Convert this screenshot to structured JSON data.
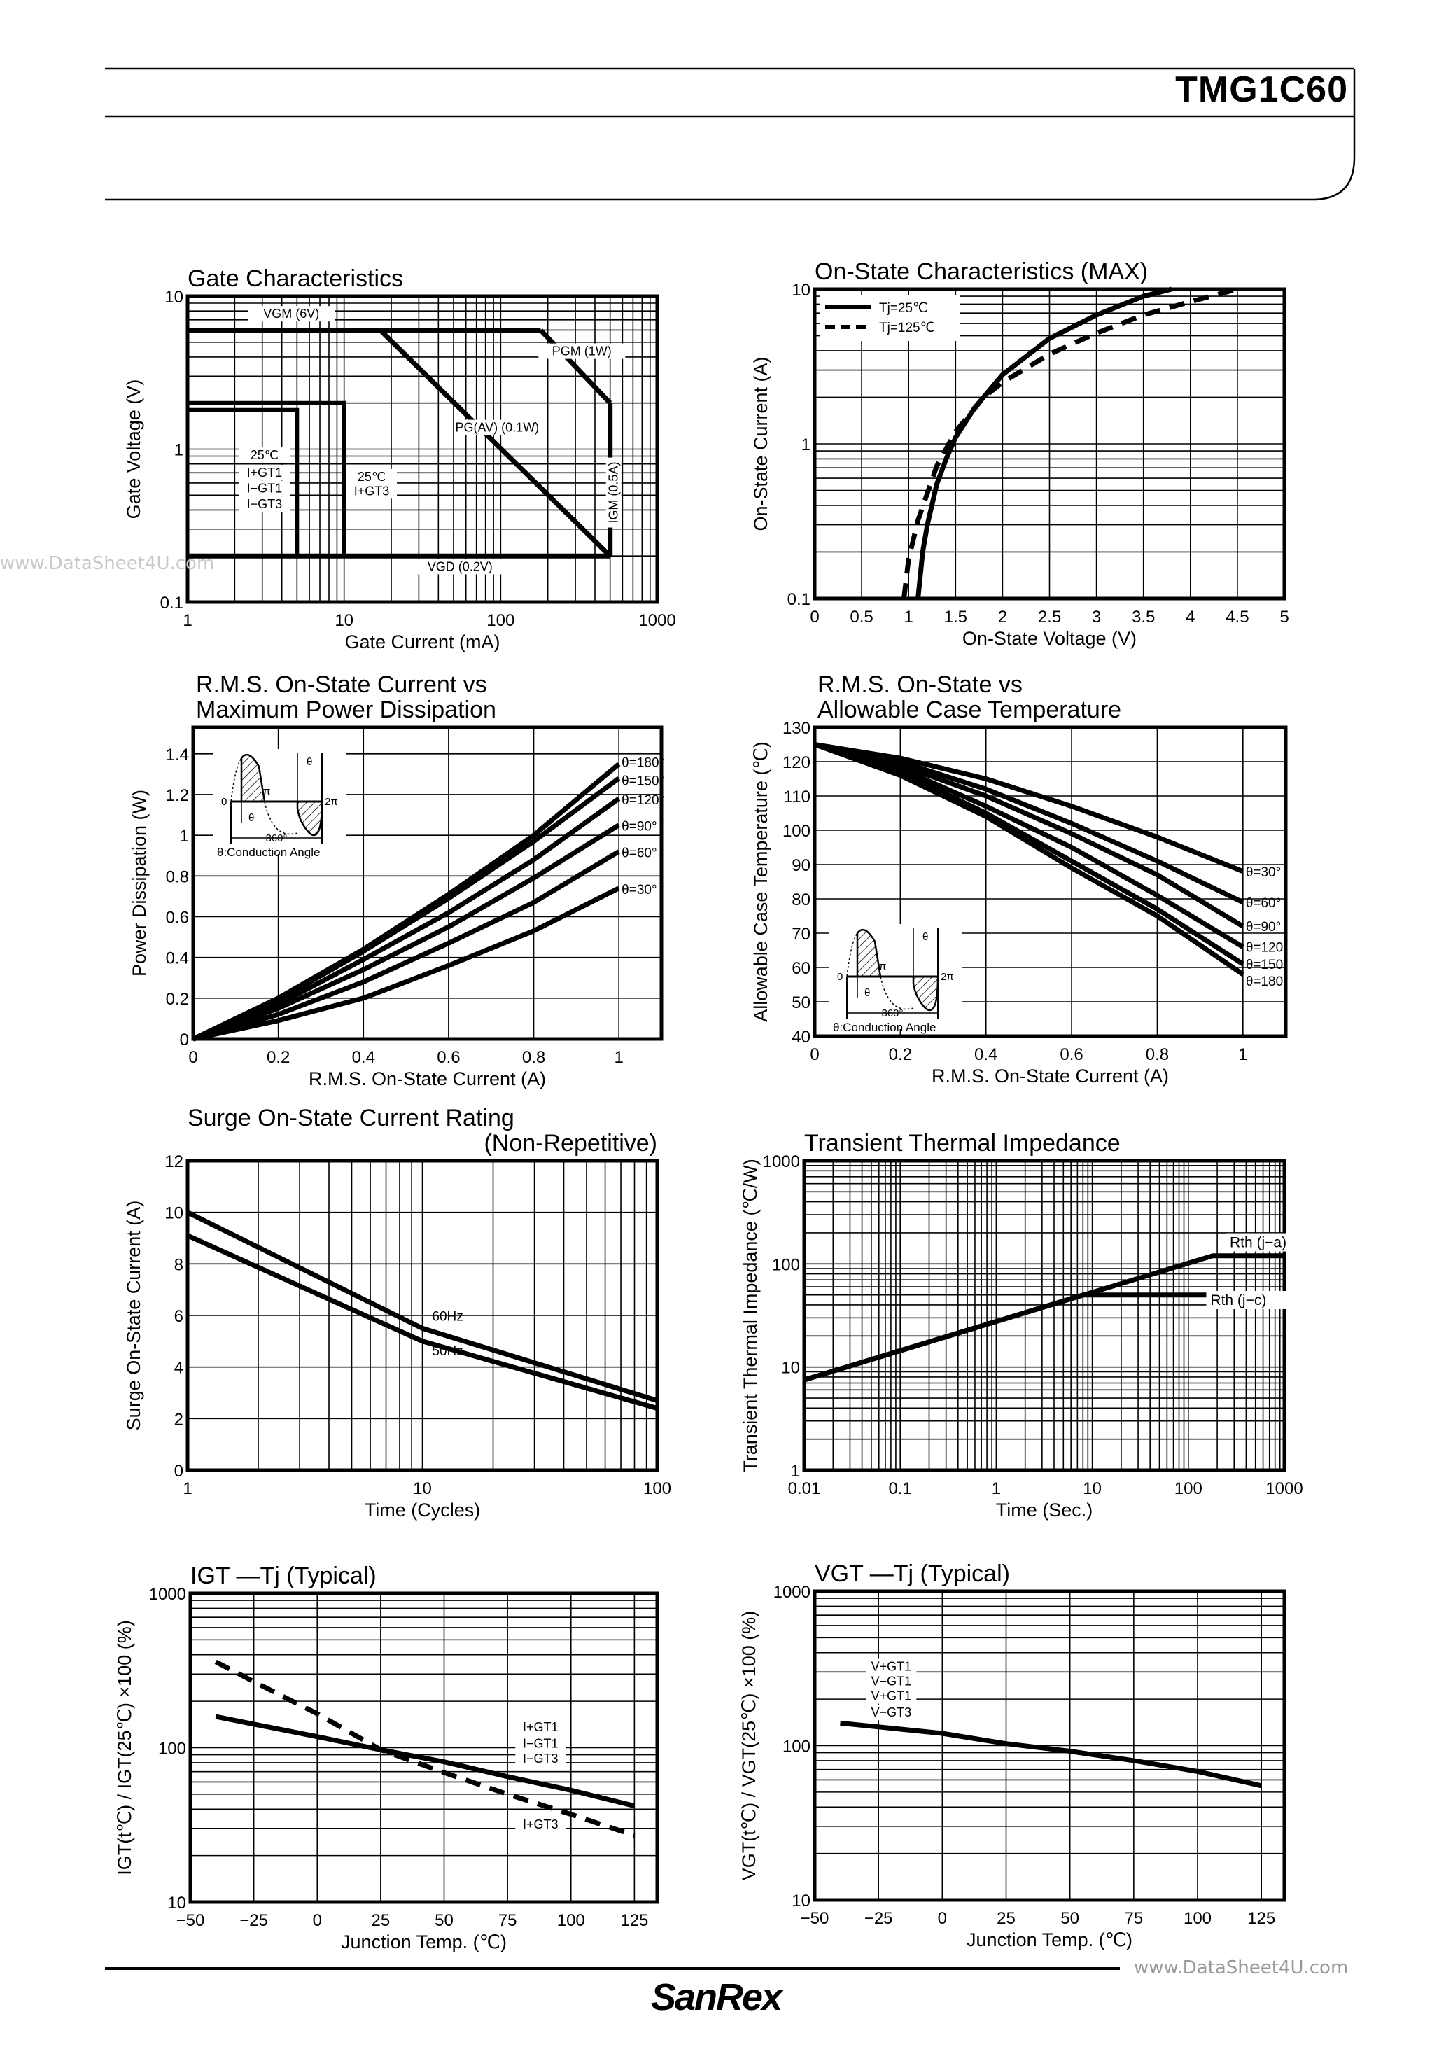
{
  "header": {
    "part_number": "TMG1C60"
  },
  "footer": {
    "brand_logo": "SanRex",
    "watermark": "www.DataSheet4U.com"
  },
  "watermark_left": "www.DataSheet4U.com",
  "inset": {
    "zero": "0",
    "pi": "π",
    "two_pi": "2π",
    "theta": "θ",
    "period": "360°",
    "caption": "θ:Conduction Angle"
  },
  "chart_data": [
    {
      "type": "line",
      "title": [
        "Gate Characteristics"
      ],
      "xlabel": "Gate Current (mA)",
      "ylabel": "Gate Voltage (V)",
      "xscale": "log",
      "yscale": "log",
      "xlim": [
        1,
        1000
      ],
      "ylim": [
        0.1,
        10
      ],
      "xticks": [
        1,
        10,
        100,
        1000
      ],
      "xtick_labels": [
        "1",
        "10",
        "100",
        "1000"
      ],
      "yticks": [
        0.1,
        1,
        10
      ],
      "ytick_labels": [
        "0.1",
        "1",
        "10"
      ],
      "grid": true,
      "series": [
        {
          "name": "VGM (6V)",
          "points": [
            [
              1,
              6
            ],
            [
              180,
              6
            ]
          ]
        },
        {
          "name": "PGM (1W)",
          "points": [
            [
              180,
              6
            ],
            [
              500,
              2
            ]
          ]
        },
        {
          "name": "IGM (0.5A)",
          "points": [
            [
              500,
              2
            ],
            [
              500,
              0.2
            ]
          ]
        },
        {
          "name": "PG(AV) (0.1W)",
          "points": [
            [
              17,
              6
            ],
            [
              500,
              0.2
            ]
          ]
        },
        {
          "name": "VGD (0.2V)",
          "points": [
            [
              1,
              0.2
            ],
            [
              500,
              0.2
            ]
          ]
        },
        {
          "name": "",
          "points": [
            [
              1,
              2
            ],
            [
              10,
              2
            ],
            [
              10,
              0.2
            ]
          ]
        },
        {
          "name": "",
          "points": [
            [
              1,
              1.8
            ],
            [
              5,
              1.8
            ],
            [
              5,
              0.2
            ]
          ]
        }
      ],
      "annotations": [
        "VGM (6V)",
        "PGM (1W)",
        "PG(AV) (0.1W)",
        "IGM (0.5A)",
        "VGD (0.2V)",
        "25℃",
        "I+GT1",
        "I−GT1",
        "I−GT3",
        "25℃",
        "I+GT3"
      ]
    },
    {
      "type": "line",
      "title": [
        "On-State Characteristics (MAX)"
      ],
      "xlabel": "On-State Voltage (V)",
      "ylabel": "On-State Current (A)",
      "xscale": "linear",
      "yscale": "log",
      "xlim": [
        0,
        5
      ],
      "ylim": [
        0.1,
        10
      ],
      "xticks": [
        0,
        0.5,
        1,
        1.5,
        2,
        2.5,
        3,
        3.5,
        4,
        4.5,
        5
      ],
      "xtick_labels": [
        "0",
        "0.5",
        "1",
        "1.5",
        "2",
        "2.5",
        "3",
        "3.5",
        "4",
        "4.5",
        "5"
      ],
      "yticks": [
        0.1,
        1,
        10
      ],
      "ytick_labels": [
        "0.1",
        "1",
        "10"
      ],
      "grid": true,
      "legend": "top-left",
      "series": [
        {
          "name": "Tj=25℃",
          "dashed": false,
          "points": [
            [
              1.1,
              0.1
            ],
            [
              1.15,
              0.2
            ],
            [
              1.2,
              0.3
            ],
            [
              1.3,
              0.55
            ],
            [
              1.4,
              0.8
            ],
            [
              1.5,
              1.1
            ],
            [
              1.7,
              1.7
            ],
            [
              2,
              2.8
            ],
            [
              2.5,
              4.8
            ],
            [
              3,
              6.8
            ],
            [
              3.5,
              9
            ],
            [
              3.8,
              10
            ]
          ]
        },
        {
          "name": "Tj=125℃",
          "dashed": true,
          "points": [
            [
              0.95,
              0.1
            ],
            [
              1.0,
              0.18
            ],
            [
              1.1,
              0.32
            ],
            [
              1.2,
              0.48
            ],
            [
              1.3,
              0.72
            ],
            [
              1.5,
              1.2
            ],
            [
              1.8,
              2.0
            ],
            [
              2,
              2.5
            ],
            [
              2.5,
              3.8
            ],
            [
              3,
              5.2
            ],
            [
              3.5,
              6.8
            ],
            [
              4,
              8.3
            ],
            [
              4.5,
              10
            ]
          ]
        }
      ]
    },
    {
      "type": "line",
      "title": [
        "R.M.S. On-State Current vs",
        "Maximum Power Dissipation"
      ],
      "xlabel": "R.M.S. On-State Current (A)",
      "ylabel": "Power Dissipation (W)",
      "xscale": "linear",
      "yscale": "linear",
      "xlim": [
        0,
        1.1
      ],
      "ylim": [
        0,
        1.53
      ],
      "xticks": [
        0,
        0.2,
        0.4,
        0.6,
        0.8,
        1
      ],
      "xtick_labels": [
        "0",
        "0.2",
        "0.4",
        "0.6",
        "0.8",
        "1"
      ],
      "yticks": [
        0,
        0.2,
        0.4,
        0.6,
        0.8,
        1,
        1.2,
        1.4
      ],
      "ytick_labels": [
        "0",
        "0.2",
        "0.4",
        "0.6",
        "0.8",
        "1",
        "1.2",
        "1.4"
      ],
      "grid": true,
      "series": [
        {
          "name": "θ=180°",
          "points": [
            [
              0,
              0
            ],
            [
              0.2,
              0.2
            ],
            [
              0.4,
              0.44
            ],
            [
              0.6,
              0.71
            ],
            [
              0.8,
              1.0
            ],
            [
              1,
              1.35
            ]
          ]
        },
        {
          "name": "θ=150°",
          "points": [
            [
              0,
              0
            ],
            [
              0.2,
              0.19
            ],
            [
              0.4,
              0.43
            ],
            [
              0.6,
              0.69
            ],
            [
              0.8,
              0.97
            ],
            [
              1,
              1.28
            ]
          ]
        },
        {
          "name": "θ=120°",
          "points": [
            [
              0,
              0
            ],
            [
              0.2,
              0.17
            ],
            [
              0.4,
              0.39
            ],
            [
              0.6,
              0.62
            ],
            [
              0.8,
              0.88
            ],
            [
              1,
              1.18
            ]
          ]
        },
        {
          "name": "θ=90°",
          "points": [
            [
              0,
              0
            ],
            [
              0.2,
              0.15
            ],
            [
              0.4,
              0.34
            ],
            [
              0.6,
              0.55
            ],
            [
              0.8,
              0.79
            ],
            [
              1,
              1.05
            ]
          ]
        },
        {
          "name": "θ=60°",
          "points": [
            [
              0,
              0
            ],
            [
              0.2,
              0.12
            ],
            [
              0.4,
              0.28
            ],
            [
              0.6,
              0.47
            ],
            [
              0.8,
              0.67
            ],
            [
              1,
              0.92
            ]
          ]
        },
        {
          "name": "θ=30°",
          "points": [
            [
              0,
              0
            ],
            [
              0.2,
              0.09
            ],
            [
              0.4,
              0.2
            ],
            [
              0.6,
              0.36
            ],
            [
              0.8,
              0.53
            ],
            [
              1,
              0.74
            ]
          ]
        }
      ]
    },
    {
      "type": "line",
      "title": [
        "R.M.S. On-State vs",
        "Allowable Case Temperature"
      ],
      "xlabel": "R.M.S. On-State Current (A)",
      "ylabel": "Allowable Case Temperature (℃)",
      "xscale": "linear",
      "yscale": "linear",
      "xlim": [
        0,
        1.1
      ],
      "ylim": [
        40,
        130
      ],
      "xticks": [
        0,
        0.2,
        0.4,
        0.6,
        0.8,
        1
      ],
      "xtick_labels": [
        "0",
        "0.2",
        "0.4",
        "0.6",
        "0.8",
        "1"
      ],
      "yticks": [
        40,
        50,
        60,
        70,
        80,
        90,
        100,
        110,
        120,
        130
      ],
      "ytick_labels": [
        "40",
        "50",
        "60",
        "70",
        "80",
        "90",
        "100",
        "110",
        "120",
        "130"
      ],
      "grid": true,
      "series": [
        {
          "name": "θ=30°",
          "points": [
            [
              0,
              125
            ],
            [
              0.2,
              121
            ],
            [
              0.4,
              115
            ],
            [
              0.6,
              107
            ],
            [
              0.8,
              98
            ],
            [
              1,
              88
            ]
          ]
        },
        {
          "name": "θ=60°",
          "points": [
            [
              0,
              125
            ],
            [
              0.2,
              120
            ],
            [
              0.4,
              112
            ],
            [
              0.6,
              102
            ],
            [
              0.8,
              91
            ],
            [
              1,
              79
            ]
          ]
        },
        {
          "name": "θ=90°",
          "points": [
            [
              0,
              125
            ],
            [
              0.2,
              119
            ],
            [
              0.4,
              110
            ],
            [
              0.6,
              99
            ],
            [
              0.8,
              87
            ],
            [
              1,
              72
            ]
          ]
        },
        {
          "name": "θ=120°",
          "points": [
            [
              0,
              125
            ],
            [
              0.2,
              118
            ],
            [
              0.4,
              107
            ],
            [
              0.6,
              95
            ],
            [
              0.8,
              81
            ],
            [
              1,
              66
            ]
          ]
        },
        {
          "name": "θ=150°",
          "points": [
            [
              0,
              125
            ],
            [
              0.2,
              117
            ],
            [
              0.4,
              105
            ],
            [
              0.6,
              91
            ],
            [
              0.8,
              77
            ],
            [
              1,
              61
            ]
          ]
        },
        {
          "name": "θ=180°",
          "points": [
            [
              0,
              125
            ],
            [
              0.2,
              116
            ],
            [
              0.4,
              104
            ],
            [
              0.6,
              89
            ],
            [
              0.8,
              75
            ],
            [
              1,
              58
            ]
          ]
        }
      ]
    },
    {
      "type": "line",
      "title": [
        "Surge On-State Current Rating",
        "(Non-Repetitive)"
      ],
      "xlabel": "Time (Cycles)",
      "ylabel": "Surge On-State Current (A)",
      "xscale": "log",
      "yscale": "linear",
      "xlim": [
        1,
        100
      ],
      "ylim": [
        0,
        12
      ],
      "xticks": [
        1,
        10,
        100
      ],
      "xtick_labels": [
        "1",
        "10",
        "100"
      ],
      "yticks": [
        0,
        2,
        4,
        6,
        8,
        10,
        12
      ],
      "ytick_labels": [
        "0",
        "2",
        "4",
        "6",
        "8",
        "10",
        "12"
      ],
      "grid": true,
      "series": [
        {
          "name": "60Hz",
          "points": [
            [
              1,
              10
            ],
            [
              10,
              5.5
            ],
            [
              100,
              2.7
            ]
          ]
        },
        {
          "name": "50Hz",
          "points": [
            [
              1,
              9.1
            ],
            [
              10,
              5.0
            ],
            [
              100,
              2.4
            ]
          ]
        }
      ]
    },
    {
      "type": "line",
      "title": [
        "Transient Thermal Impedance"
      ],
      "xlabel": "Time (Sec.)",
      "ylabel": "Transient Thermal Impedance (℃/W)",
      "xscale": "log",
      "yscale": "log",
      "xlim": [
        0.01,
        1000
      ],
      "ylim": [
        1,
        1000
      ],
      "xticks": [
        0.01,
        0.1,
        1,
        10,
        100,
        1000
      ],
      "xtick_labels": [
        "0.01",
        "0.1",
        "1",
        "10",
        "100",
        "1000"
      ],
      "yticks": [
        1,
        10,
        100,
        1000
      ],
      "ytick_labels": [
        "1",
        "10",
        "100",
        "1000"
      ],
      "grid": true,
      "series": [
        {
          "name": "Rth (j−a)",
          "points": [
            [
              0.01,
              7.5
            ],
            [
              180,
              120
            ],
            [
              1000,
              120
            ]
          ]
        },
        {
          "name": "Rth (j−c)",
          "points": [
            [
              0.01,
              7.5
            ],
            [
              8,
              50
            ],
            [
              1000,
              50
            ]
          ]
        }
      ]
    },
    {
      "type": "line",
      "title": [
        "IGT —Tj (Typical)"
      ],
      "xlabel": "Junction Temp. (℃)",
      "ylabel": "IGT(t℃) / IGT(25℃) ×100 (%)",
      "xscale": "linear",
      "yscale": "log",
      "xlim": [
        -50,
        134
      ],
      "ylim": [
        10,
        1000
      ],
      "xticks": [
        -50,
        -25,
        0,
        25,
        50,
        75,
        100,
        125
      ],
      "xtick_labels": [
        "−50",
        "−25",
        "0",
        "25",
        "50",
        "75",
        "100",
        "125"
      ],
      "yticks": [
        10,
        100,
        1000
      ],
      "ytick_labels": [
        "10",
        "100",
        "1000"
      ],
      "grid": true,
      "series": [
        {
          "name": "I+GT1, I−GT1, I−GT3",
          "dashed": false,
          "points": [
            [
              -40,
              159
            ],
            [
              0,
              118
            ],
            [
              25,
              97
            ],
            [
              50,
              81
            ],
            [
              75,
              65
            ],
            [
              100,
              53
            ],
            [
              125,
              42
            ]
          ]
        },
        {
          "name": "I+GT3",
          "dashed": true,
          "points": [
            [
              -40,
              360
            ],
            [
              -25,
              268
            ],
            [
              0,
              166
            ],
            [
              25,
              97
            ],
            [
              50,
              69
            ],
            [
              75,
              50
            ],
            [
              100,
              37
            ],
            [
              125,
              27
            ]
          ]
        }
      ],
      "annotations": [
        "I+GT1",
        "I−GT1",
        "I−GT3",
        "I+GT3"
      ]
    },
    {
      "type": "line",
      "title": [
        "VGT —Tj (Typical)"
      ],
      "xlabel": "Junction Temp. (℃)",
      "ylabel": "VGT(t℃) / VGT(25℃) ×100 (%)",
      "xscale": "linear",
      "yscale": "log",
      "xlim": [
        -50,
        134
      ],
      "ylim": [
        10,
        1000
      ],
      "xticks": [
        -50,
        -25,
        0,
        25,
        50,
        75,
        100,
        125
      ],
      "xtick_labels": [
        "−50",
        "−25",
        "0",
        "25",
        "50",
        "75",
        "100",
        "125"
      ],
      "yticks": [
        10,
        100,
        1000
      ],
      "ytick_labels": [
        "10",
        "100",
        "1000"
      ],
      "grid": true,
      "series": [
        {
          "name": "V+GT1, V−GT1, V+GT1, V−GT3",
          "points": [
            [
              -40,
              140
            ],
            [
              0,
              120
            ],
            [
              25,
              103
            ],
            [
              50,
              92
            ],
            [
              75,
              80
            ],
            [
              100,
              68
            ],
            [
              125,
              55
            ]
          ]
        }
      ],
      "annotations": [
        "V+GT1",
        "V−GT1",
        "V+GT1",
        "V−GT3"
      ]
    }
  ]
}
